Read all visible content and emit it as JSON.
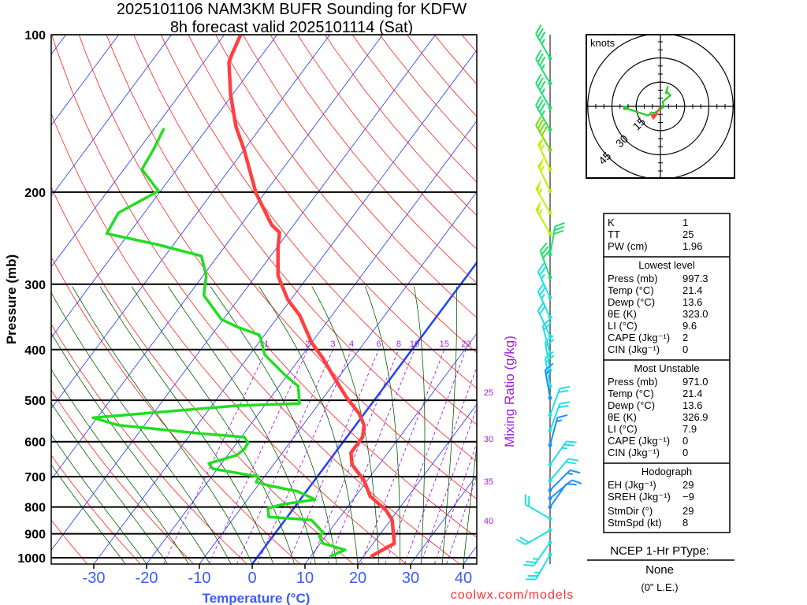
{
  "title": {
    "line1": "2025101106 NAM3KM BUFR Sounding for KDFW",
    "line2": "8h forecast valid 2025101114 (Sat)"
  },
  "footer_credit": "coolwx.com/models",
  "colors": {
    "temperature": "#ff4040",
    "dewpoint": "#22dd22",
    "isotherm": "#2030ff",
    "dry_adiabat": "#ff2020",
    "moist_adiabat": "#006000",
    "mixing_ratio": "#a020e0",
    "freezing_isotherm": "#2040ff"
  },
  "chart_data": {
    "type": "skew-t",
    "xlabel": "Temperature (°C)",
    "ylabel": "Pressure (mb)",
    "y2label": "Mixing Ratio (g/kg)",
    "pressure_ticks": [
      "100",
      "200",
      "300",
      "400",
      "500",
      "600",
      "700",
      "800",
      "900",
      "1000"
    ],
    "temperature_ticks": [
      "−30",
      "−20",
      "−10",
      "0",
      "10",
      "20",
      "30",
      "40"
    ],
    "temperature_tick_values": [
      -30,
      -20,
      -10,
      0,
      10,
      20,
      30,
      40
    ],
    "mixing_ratio_labels_top": [
      "1",
      "2",
      "3",
      "4",
      "6",
      "8",
      "10",
      "15",
      "20"
    ],
    "mixing_ratio_labels_right": [
      "25",
      "30",
      "35",
      "40"
    ],
    "temperature_profile": [
      [
        995,
        21.4
      ],
      [
        939,
        24.0
      ],
      [
        847,
        20.3
      ],
      [
        812,
        17.8
      ],
      [
        763,
        12.8
      ],
      [
        712,
        9.4
      ],
      [
        664,
        4.9
      ],
      [
        630,
        3.0
      ],
      [
        588,
        3.0
      ],
      [
        558,
        1.6
      ],
      [
        530,
        -1.0
      ],
      [
        495,
        -5.5
      ],
      [
        454,
        -10.6
      ],
      [
        416,
        -15.6
      ],
      [
        388,
        -20.0
      ],
      [
        344,
        -26.1
      ],
      [
        321,
        -30.6
      ],
      [
        289,
        -35.8
      ],
      [
        256,
        -39.7
      ],
      [
        239,
        -41.6
      ],
      [
        231,
        -44.2
      ],
      [
        201,
        -51.6
      ],
      [
        166,
        -60.0
      ],
      [
        150,
        -64.8
      ],
      [
        130,
        -70.4
      ],
      [
        113,
        -75.2
      ],
      [
        109,
        -75.8
      ],
      [
        100,
        -76.9
      ]
    ],
    "dewpoint_profile": [
      [
        995,
        13.6
      ],
      [
        966,
        15.6
      ],
      [
        939,
        10.5
      ],
      [
        908,
        8.7
      ],
      [
        895,
        9.0
      ],
      [
        847,
        5.0
      ],
      [
        836,
        -3.5
      ],
      [
        804,
        -4.9
      ],
      [
        790,
        -2.5
      ],
      [
        774,
        2.8
      ],
      [
        747,
        -1.6
      ],
      [
        727,
        -8.1
      ],
      [
        717,
        -10.8
      ],
      [
        700,
        -11.1
      ],
      [
        688,
        -15.9
      ],
      [
        676,
        -20.9
      ],
      [
        660,
        -22.4
      ],
      [
        637,
        -18.3
      ],
      [
        620,
        -17.7
      ],
      [
        603,
        -17.9
      ],
      [
        588,
        -19.4
      ],
      [
        578,
        -28.9
      ],
      [
        558,
        -44.9
      ],
      [
        540,
        -50.8
      ],
      [
        512,
        -25.3
      ],
      [
        507,
        -13.7
      ],
      [
        470,
        -16.4
      ],
      [
        446,
        -20.7
      ],
      [
        409,
        -27.2
      ],
      [
        381,
        -30.2
      ],
      [
        375,
        -31.0
      ],
      [
        362,
        -36.3
      ],
      [
        350,
        -40.4
      ],
      [
        326,
        -44.9
      ],
      [
        315,
        -47.1
      ],
      [
        289,
        -49.4
      ],
      [
        265,
        -53.1
      ],
      [
        252,
        -63.0
      ],
      [
        240,
        -74.2
      ],
      [
        219,
        -74.9
      ],
      [
        199,
        -70.4
      ],
      [
        181,
        -76.6
      ],
      [
        166,
        -77.2
      ],
      [
        151,
        -78.2
      ]
    ],
    "wind_barbs_p_dir_kt": [
      [
        111,
        330,
        35
      ],
      [
        124,
        330,
        35
      ],
      [
        138,
        330,
        35
      ],
      [
        152,
        330,
        35
      ],
      [
        166,
        330,
        40
      ],
      [
        181,
        335,
        55
      ],
      [
        199,
        335,
        55
      ],
      [
        219,
        330,
        55
      ],
      [
        240,
        330,
        55
      ],
      [
        263,
        10,
        30
      ],
      [
        291,
        340,
        30
      ],
      [
        318,
        335,
        25
      ],
      [
        347,
        335,
        25
      ],
      [
        377,
        335,
        20
      ],
      [
        407,
        345,
        20
      ],
      [
        438,
        350,
        20
      ],
      [
        470,
        350,
        20
      ],
      [
        495,
        350,
        15
      ],
      [
        534,
        20,
        20
      ],
      [
        571,
        20,
        20
      ],
      [
        609,
        15,
        15
      ],
      [
        664,
        35,
        25
      ],
      [
        712,
        40,
        20
      ],
      [
        743,
        45,
        15
      ],
      [
        770,
        50,
        10
      ],
      [
        800,
        35,
        10
      ],
      [
        842,
        300,
        20
      ],
      [
        886,
        240,
        20
      ],
      [
        935,
        215,
        25
      ],
      [
        987,
        210,
        25
      ]
    ],
    "hodograph": {
      "units_label": "knots",
      "ring_labels": [
        "15",
        "30",
        "45"
      ],
      "ring_values": [
        15,
        30,
        45
      ],
      "trace_u_v_kt": [
        [
          -21.8,
          -1.0
        ],
        [
          -7.6,
          -5.7
        ],
        [
          -5.5,
          -3.7
        ],
        [
          -3.9,
          -4.1
        ],
        [
          -0.3,
          -2.1
        ],
        [
          2.1,
          -0.2
        ],
        [
          1.3,
          2.8
        ],
        [
          4.2,
          5.2
        ],
        [
          6.2,
          6.8
        ],
        [
          3.7,
          9.3
        ],
        [
          4.6,
          12.5
        ],
        [
          3.3,
          7.6
        ]
      ],
      "storm_motion_u_v_kt": [
        -3.9,
        -7.0
      ]
    }
  },
  "stats": {
    "indices": [
      [
        "K",
        "1"
      ],
      [
        "TT",
        "25"
      ],
      [
        "PW (cm)",
        "1.96"
      ]
    ],
    "lowest_level": {
      "header": "Lowest level",
      "rows": [
        [
          "Press (mb)",
          "997.3"
        ],
        [
          "Temp (°C)",
          "21.4"
        ],
        [
          "Dewp (°C)",
          "13.6"
        ],
        [
          "θE (K)",
          "323.0"
        ],
        [
          "LI (°C)",
          "9.6"
        ],
        [
          "CAPE (Jkg⁻¹)",
          "2"
        ],
        [
          "CIN (Jkg⁻¹)",
          "0"
        ]
      ]
    },
    "most_unstable": {
      "header": "Most Unstable",
      "rows": [
        [
          "Press (mb)",
          "971.0"
        ],
        [
          "Temp (°C)",
          "21.4"
        ],
        [
          "Dewp (°C)",
          "13.6"
        ],
        [
          "θE (K)",
          "326.9"
        ],
        [
          "LI (°C)",
          "7.9"
        ],
        [
          "CAPE (Jkg⁻¹)",
          "0"
        ],
        [
          "CIN (Jkg⁻¹)",
          "0"
        ]
      ]
    },
    "hodograph": {
      "header": "Hodograph",
      "rows": [
        [
          "EH (Jkg⁻¹)",
          "29"
        ],
        [
          "SREH (Jkg⁻¹)",
          "−9"
        ],
        [
          "StmDir (°)",
          "29"
        ],
        [
          "StmSpd (kt)",
          "8"
        ]
      ]
    }
  },
  "ptype": {
    "label": "NCEP 1-Hr PType:",
    "value": "None",
    "amount": "(0\" L.E.)"
  }
}
